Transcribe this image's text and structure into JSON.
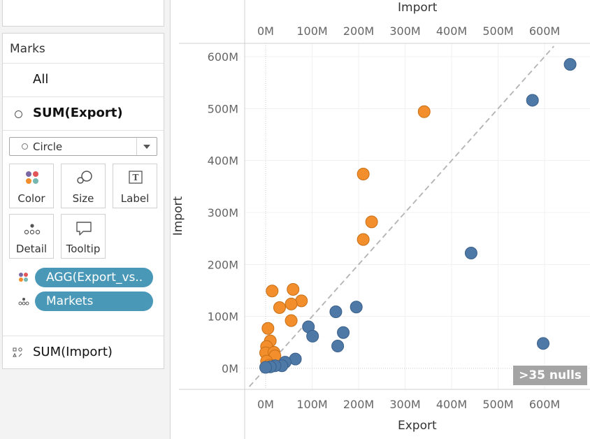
{
  "marks_card": {
    "title": "Marks",
    "all_label": "All",
    "export_label": "SUM(Export)",
    "mark_type": "Circle",
    "tiles": [
      {
        "label": "Color"
      },
      {
        "label": "Size"
      },
      {
        "label": "Label"
      },
      {
        "label": "Detail"
      },
      {
        "label": "Tooltip"
      }
    ],
    "pills": [
      {
        "label": "AGG(Export_vs..",
        "icon": "color-dots-icon"
      },
      {
        "label": "Markets",
        "icon": "detail-dots-icon"
      }
    ],
    "import_label": "SUM(Import)"
  },
  "colors": {
    "import_greater": "#f28e2b",
    "export_greater": "#4e79a7",
    "pill": "#4a98b7",
    "reference_line": "#b3b3b3"
  },
  "nulls_badge": ">35 nulls",
  "chart_data": {
    "type": "scatter",
    "x_title": "Export",
    "y_title": "Import",
    "top_title": "Import",
    "x_ticks": [
      "0M",
      "100M",
      "200M",
      "300M",
      "400M",
      "500M",
      "600M"
    ],
    "y_ticks": [
      "0M",
      "100M",
      "200M",
      "300M",
      "400M",
      "500M",
      "600M"
    ],
    "xlim": [
      -40,
      700
    ],
    "ylim": [
      -40,
      640
    ],
    "reference_line": "y = x",
    "grid": true,
    "series": [
      {
        "color_key": "import_greater",
        "points": [
          [
            14,
            149
          ],
          [
            59,
            152
          ],
          [
            77,
            130
          ],
          [
            30,
            117
          ],
          [
            55,
            124
          ],
          [
            55,
            92
          ],
          [
            5,
            77
          ],
          [
            10,
            53
          ],
          [
            2,
            42
          ],
          [
            0,
            30
          ],
          [
            18,
            31
          ],
          [
            20,
            24
          ],
          [
            2,
            14
          ],
          [
            8,
            6
          ],
          [
            210,
            248
          ],
          [
            228,
            282
          ],
          [
            210,
            374
          ],
          [
            341,
            494
          ]
        ]
      },
      {
        "color_key": "export_greater",
        "points": [
          [
            655,
            585
          ],
          [
            574,
            516
          ],
          [
            442,
            222
          ],
          [
            597,
            48
          ],
          [
            151,
            109
          ],
          [
            195,
            118
          ],
          [
            92,
            80
          ],
          [
            101,
            62
          ],
          [
            167,
            69
          ],
          [
            155,
            43
          ],
          [
            64,
            18
          ],
          [
            42,
            12
          ],
          [
            35,
            5
          ],
          [
            20,
            5
          ],
          [
            10,
            3
          ],
          [
            0,
            2
          ]
        ]
      }
    ]
  }
}
